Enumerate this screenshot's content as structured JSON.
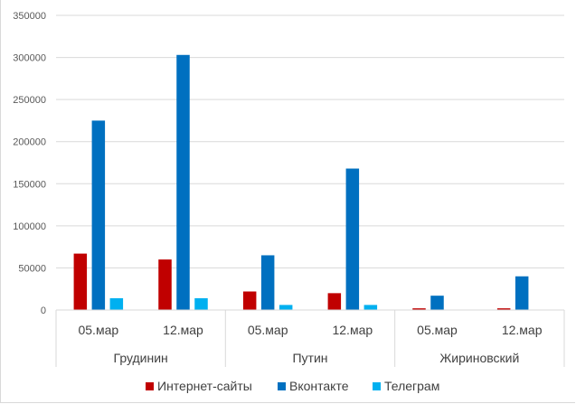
{
  "chart_data": {
    "type": "bar",
    "title": "",
    "xlabel": "",
    "ylabel": "",
    "ylim": [
      0,
      350000
    ],
    "yticks": [
      0,
      50000,
      100000,
      150000,
      200000,
      250000,
      300000,
      350000
    ],
    "grid": true,
    "legend_position": "bottom",
    "groups": [
      {
        "name": "Грудинин",
        "categories": [
          "05.мар",
          "12.мар"
        ]
      },
      {
        "name": "Путин",
        "categories": [
          "05.мар",
          "12.мар"
        ]
      },
      {
        "name": "Жириновский",
        "categories": [
          "05.мар",
          "12.мар"
        ]
      }
    ],
    "series": [
      {
        "name": "Интернет-сайты",
        "color": "#c00000",
        "values": [
          67000,
          60000,
          22000,
          20000,
          2000,
          2000
        ]
      },
      {
        "name": "Вконтакте",
        "color": "#0070c0",
        "values": [
          225000,
          303000,
          65000,
          168000,
          17000,
          40000
        ]
      },
      {
        "name": "Телеграм",
        "color": "#00b0f0",
        "values": [
          14000,
          14000,
          6000,
          6000,
          0,
          0
        ]
      }
    ]
  }
}
